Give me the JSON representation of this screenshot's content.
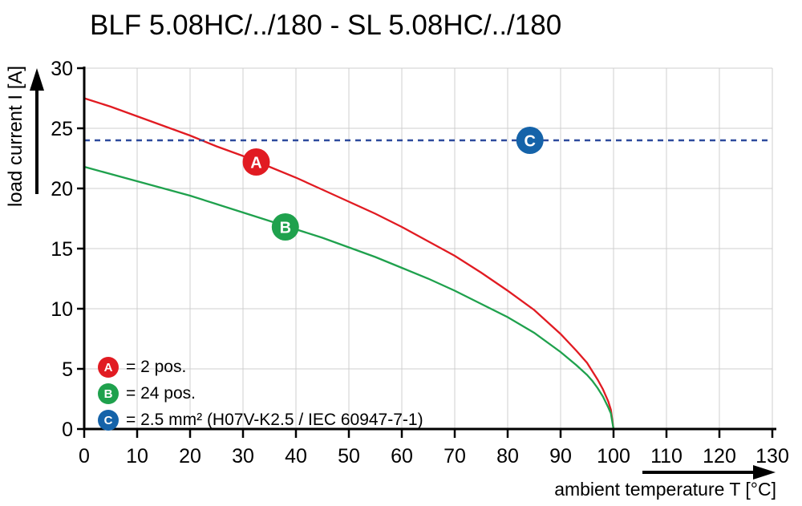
{
  "title": "BLF 5.08HC/../180 - SL 5.08HC/../180",
  "axes": {
    "x_label": "ambient temperature T [°C]",
    "y_label": "load current I [A]"
  },
  "legend": {
    "items": [
      {
        "key": "A",
        "label": "= 2 pos.",
        "color": "#e11b22"
      },
      {
        "key": "B",
        "label": "= 24 pos.",
        "color": "#1fa14d"
      },
      {
        "key": "C",
        "label": "= 2.5 mm² (H07V-K2.5 / IEC 60947-7-1)",
        "color": "#1563a9"
      }
    ]
  },
  "chart_data": {
    "type": "line",
    "title": "BLF 5.08HC/../180 - SL 5.08HC/../180",
    "xlabel": "ambient temperature T [°C]",
    "ylabel": "load current I [A]",
    "xlim": [
      0,
      130
    ],
    "ylim": [
      0,
      30
    ],
    "xticks": [
      0,
      10,
      20,
      30,
      40,
      50,
      60,
      70,
      80,
      90,
      100,
      110,
      120,
      130
    ],
    "yticks": [
      0,
      5,
      10,
      15,
      20,
      25,
      30
    ],
    "grid": true,
    "grid_color": "#cfcfcf",
    "legend_position": "lower-left",
    "series": [
      {
        "name": "A = 2 pos.",
        "color": "#e11b22",
        "style": "solid",
        "points": [
          [
            0,
            27.5
          ],
          [
            5,
            26.8
          ],
          [
            10,
            26.0
          ],
          [
            15,
            25.2
          ],
          [
            20,
            24.4
          ],
          [
            25,
            23.5
          ],
          [
            30,
            22.7
          ],
          [
            35,
            21.8
          ],
          [
            40,
            20.9
          ],
          [
            45,
            19.9
          ],
          [
            50,
            18.9
          ],
          [
            55,
            17.9
          ],
          [
            60,
            16.8
          ],
          [
            65,
            15.6
          ],
          [
            70,
            14.4
          ],
          [
            75,
            13.0
          ],
          [
            80,
            11.5
          ],
          [
            85,
            9.9
          ],
          [
            90,
            7.9
          ],
          [
            93,
            6.5
          ],
          [
            95,
            5.5
          ],
          [
            96,
            4.8
          ],
          [
            97,
            4.1
          ],
          [
            98,
            3.3
          ],
          [
            99,
            2.3
          ],
          [
            99.5,
            1.6
          ],
          [
            100,
            0
          ]
        ]
      },
      {
        "name": "B = 24 pos.",
        "color": "#1fa14d",
        "style": "solid",
        "points": [
          [
            0,
            21.8
          ],
          [
            5,
            21.2
          ],
          [
            10,
            20.6
          ],
          [
            15,
            20.0
          ],
          [
            20,
            19.4
          ],
          [
            25,
            18.7
          ],
          [
            30,
            18.0
          ],
          [
            35,
            17.3
          ],
          [
            40,
            16.6
          ],
          [
            45,
            15.9
          ],
          [
            50,
            15.1
          ],
          [
            55,
            14.3
          ],
          [
            60,
            13.4
          ],
          [
            65,
            12.5
          ],
          [
            70,
            11.5
          ],
          [
            75,
            10.4
          ],
          [
            80,
            9.3
          ],
          [
            85,
            8.0
          ],
          [
            90,
            6.4
          ],
          [
            93,
            5.3
          ],
          [
            95,
            4.5
          ],
          [
            96,
            4.0
          ],
          [
            97,
            3.4
          ],
          [
            98,
            2.7
          ],
          [
            99,
            1.8
          ],
          [
            99.5,
            1.3
          ],
          [
            100,
            0
          ]
        ]
      },
      {
        "name": "C = 2.5 mm² (H07V-K2.5 / IEC 60947-7-1)",
        "color": "#2d4a9d",
        "style": "dashed",
        "points": [
          [
            0,
            24
          ],
          [
            130,
            24
          ]
        ]
      }
    ],
    "markers": [
      {
        "label": "A",
        "x": 32.5,
        "y": 22.2,
        "color": "#e11b22"
      },
      {
        "label": "B",
        "x": 38,
        "y": 16.8,
        "color": "#1fa14d"
      },
      {
        "label": "C",
        "x": 84.2,
        "y": 24,
        "color": "#1563a9"
      }
    ]
  }
}
